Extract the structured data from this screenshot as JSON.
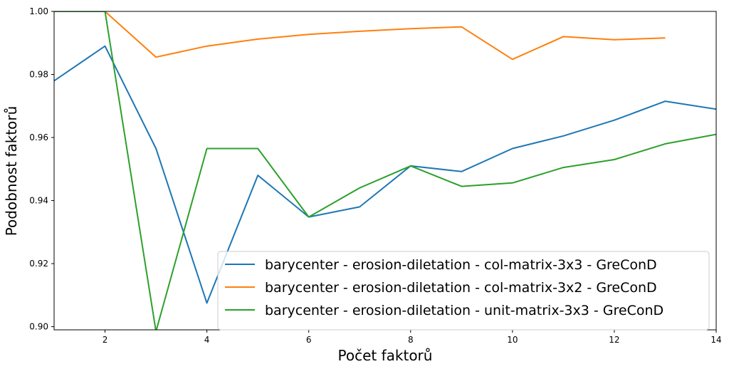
{
  "chart_data": {
    "type": "line",
    "title": "",
    "xlabel": "Počet faktorů",
    "ylabel": "Podobnost faktorů",
    "xlim": [
      1,
      14
    ],
    "ylim": [
      0.899,
      1.0
    ],
    "xticks": [
      2,
      4,
      6,
      8,
      10,
      12,
      14
    ],
    "yticks": [
      0.9,
      0.92,
      0.94,
      0.96,
      0.98,
      1.0
    ],
    "ytick_labels": [
      "0.90",
      "0.92",
      "0.94",
      "0.96",
      "0.98",
      "1.00"
    ],
    "grid": false,
    "legend_position": "lower-right",
    "series": [
      {
        "name": "barycenter - erosion-diletation - col-matrix-3x3 - GreConD",
        "color": "#1f77b4",
        "x": [
          1,
          2,
          3,
          4,
          5,
          6,
          7,
          8,
          9,
          10,
          11,
          12,
          13,
          14
        ],
        "y": [
          0.978,
          0.989,
          0.9565,
          0.9075,
          0.948,
          0.9348,
          0.938,
          0.951,
          0.9492,
          0.9565,
          0.9605,
          0.9655,
          0.9715,
          0.969
        ]
      },
      {
        "name": "barycenter - erosion-diletation - col-matrix-3x2 - GreConD",
        "color": "#ff7f0e",
        "x": [
          1,
          2,
          3,
          4,
          5,
          6,
          7,
          8,
          9,
          10,
          11,
          12,
          13
        ],
        "y": [
          1.0,
          1.0,
          0.9855,
          0.989,
          0.9912,
          0.9927,
          0.9937,
          0.9945,
          0.9951,
          0.9848,
          0.992,
          0.991,
          0.9916
        ]
      },
      {
        "name": "barycenter - erosion-diletation - unit-matrix-3x3 - GreConD",
        "color": "#2ca02c",
        "x": [
          1,
          2,
          3,
          4,
          5,
          6,
          7,
          8,
          9,
          10,
          11,
          12,
          13,
          14
        ],
        "y": [
          1.0,
          1.0,
          0.8985,
          0.9565,
          0.9565,
          0.9348,
          0.944,
          0.951,
          0.9445,
          0.9456,
          0.9505,
          0.953,
          0.958,
          0.961
        ]
      }
    ]
  }
}
